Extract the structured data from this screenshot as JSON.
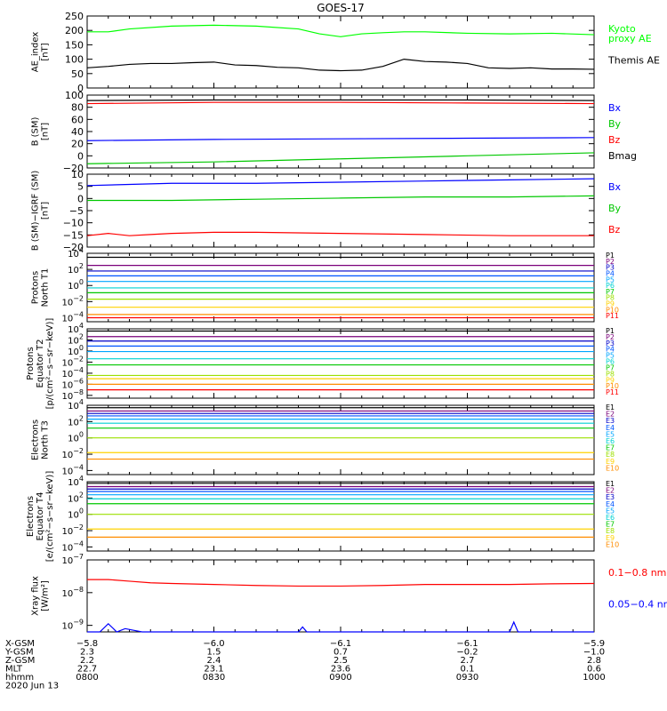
{
  "title": "GOES-17",
  "colors": {
    "black": "#000000",
    "red": "#ff0000",
    "green": "#00c800",
    "blue": "#0000ff",
    "kyoto": "#00ff00",
    "p_channels": [
      "#000000",
      "#7a007a",
      "#0000c8",
      "#0055ff",
      "#00a5ff",
      "#00d2d2",
      "#00c800",
      "#9be000",
      "#ffd200",
      "#ff8c00",
      "#ff0000"
    ],
    "e_channels": [
      "#000000",
      "#7a007a",
      "#0000c8",
      "#0055ff",
      "#00a5ff",
      "#00d2d2",
      "#00c800",
      "#9be000",
      "#ffd200",
      "#ff8c00"
    ]
  },
  "chart_data": [
    {
      "type": "line",
      "panel": "ae",
      "ylabel": "AE_index\n[nT]",
      "ylim": [
        0,
        250
      ],
      "yticks": [
        "250",
        "200",
        "150",
        "100",
        "50",
        "0"
      ],
      "series": [
        {
          "name": "Kyoto\nproxy AE",
          "color": "#00ff00",
          "x": [
            0,
            5,
            10,
            20,
            30,
            40,
            50,
            55,
            60,
            65,
            70,
            75,
            80,
            90,
            100,
            110,
            120
          ],
          "y": [
            195,
            195,
            205,
            215,
            218,
            215,
            205,
            188,
            178,
            188,
            192,
            195,
            195,
            190,
            188,
            190,
            185
          ]
        },
        {
          "name": "Themis AE",
          "color": "#000000",
          "x": [
            0,
            5,
            10,
            15,
            20,
            25,
            30,
            35,
            40,
            45,
            50,
            55,
            60,
            65,
            70,
            75,
            80,
            85,
            90,
            95,
            100,
            105,
            110,
            115,
            120
          ],
          "y": [
            70,
            75,
            82,
            85,
            85,
            88,
            90,
            80,
            78,
            72,
            70,
            62,
            60,
            62,
            75,
            100,
            92,
            90,
            85,
            70,
            68,
            70,
            66,
            66,
            65
          ]
        }
      ]
    },
    {
      "type": "line",
      "panel": "b_sm",
      "ylabel": "B (SM)\n[nT]",
      "ylim": [
        -20,
        100
      ],
      "yticks": [
        "100",
        "80",
        "60",
        "40",
        "20",
        "0",
        "−20"
      ],
      "series": [
        {
          "name": "Bx",
          "color": "#0000ff",
          "x": [
            0,
            30,
            60,
            90,
            120
          ],
          "y": [
            25,
            27,
            28,
            29,
            30
          ]
        },
        {
          "name": "By",
          "color": "#00c800",
          "x": [
            0,
            30,
            60,
            90,
            120
          ],
          "y": [
            -13,
            -10,
            -5,
            0,
            5
          ]
        },
        {
          "name": "Bz",
          "color": "#ff0000",
          "x": [
            0,
            30,
            60,
            90,
            120
          ],
          "y": [
            86,
            88,
            88,
            87,
            86
          ]
        },
        {
          "name": "Bmag",
          "color": "#000000",
          "x": [
            0,
            30,
            60,
            90,
            120
          ],
          "y": [
            91,
            92,
            92,
            92,
            91
          ]
        }
      ]
    },
    {
      "type": "line",
      "panel": "b_igrf",
      "ylabel": "B (SM)−IGRF (SM)\n[nT]",
      "ylim": [
        -22,
        10
      ],
      "yticks": [
        "10",
        "5",
        "0",
        "−5",
        "−10",
        "−15",
        "−20"
      ],
      "series": [
        {
          "name": "Bx",
          "color": "#0000ff",
          "x": [
            0,
            10,
            20,
            40,
            60,
            80,
            100,
            120
          ],
          "y": [
            5,
            5.5,
            6,
            6,
            6.5,
            7,
            7.5,
            8
          ]
        },
        {
          "name": "By",
          "color": "#00c800",
          "x": [
            0,
            20,
            40,
            60,
            80,
            100,
            120
          ],
          "y": [
            -1.5,
            -1.5,
            -1,
            -0.5,
            0,
            0,
            0.5
          ]
        },
        {
          "name": "Bz",
          "color": "#ff0000",
          "x": [
            0,
            5,
            10,
            15,
            20,
            30,
            40,
            60,
            80,
            100,
            120
          ],
          "y": [
            -17,
            -16,
            -17,
            -16.5,
            -16,
            -15.5,
            -15.5,
            -16,
            -16.5,
            -17,
            -17
          ]
        }
      ]
    },
    {
      "type": "line",
      "panel": "protons_t1",
      "log": true,
      "ylabel": "Protons\nNorth T1",
      "ylim": [
        -4.5,
        4
      ],
      "yticks": [
        {
          "e": "4",
          "v": 4
        },
        {
          "e": "2",
          "v": 2
        },
        {
          "e": "0",
          "v": 0
        },
        {
          "e": "−2",
          "v": -2
        },
        {
          "e": "−4",
          "v": -4
        }
      ],
      "labels": [
        "P1",
        "P2",
        "P3",
        "P4",
        "P5",
        "P6",
        "P7",
        "P8",
        "P9",
        "P10",
        "P11"
      ],
      "levels": [
        3.5,
        2.5,
        1.8,
        1.2,
        0.5,
        -0.3,
        -0.9,
        -1.7,
        -2.7,
        -3.6,
        -4.0
      ]
    },
    {
      "type": "line",
      "panel": "protons_t2",
      "log": true,
      "ylabel": "Protons\nEquator T2\n[p/(cm²−s−sr−keV)]",
      "ylim": [
        -8.5,
        4
      ],
      "yticks": [
        {
          "e": "4",
          "v": 4
        },
        {
          "e": "2",
          "v": 2
        },
        {
          "e": "0",
          "v": 0
        },
        {
          "e": "−2",
          "v": -2
        },
        {
          "e": "−4",
          "v": -4
        },
        {
          "e": "−6",
          "v": -6
        },
        {
          "e": "−8",
          "v": -8
        }
      ],
      "labels": [
        "P1",
        "P2",
        "P3",
        "P4",
        "P5",
        "P6",
        "P7",
        "P8",
        "P9",
        "P10",
        "P11"
      ],
      "levels": [
        3.6,
        2.6,
        1.8,
        0.9,
        -0.1,
        -1.4,
        -2.5,
        -4.4,
        -5.0,
        -6.0,
        -7.0
      ]
    },
    {
      "type": "line",
      "panel": "electrons_t3",
      "log": true,
      "ylabel": "Electrons\nNorth T3",
      "ylim": [
        -4.5,
        4
      ],
      "yticks": [
        {
          "e": "4",
          "v": 4
        },
        {
          "e": "2",
          "v": 2
        },
        {
          "e": "0",
          "v": 0
        },
        {
          "e": "−2",
          "v": -2
        },
        {
          "e": "−4",
          "v": -4
        }
      ],
      "labels": [
        "E1",
        "E2",
        "E3",
        "E4",
        "E5",
        "E6",
        "E7",
        "E8",
        "E9",
        "E10"
      ],
      "levels": [
        3.7,
        3.3,
        3.0,
        2.7,
        2.3,
        1.8,
        1.2,
        0.0,
        -1.8,
        -2.6
      ]
    },
    {
      "type": "line",
      "panel": "electrons_t4",
      "log": true,
      "ylabel": "Electrons\nEquator T4\n[e/(cm²−s−sr−keV)]",
      "ylim": [
        -4.5,
        4
      ],
      "yticks": [
        {
          "e": "4",
          "v": 4
        },
        {
          "e": "2",
          "v": 2
        },
        {
          "e": "0",
          "v": 0
        },
        {
          "e": "−2",
          "v": -2
        },
        {
          "e": "−4",
          "v": -4
        }
      ],
      "labels": [
        "E1",
        "E2",
        "E3",
        "E4",
        "E5",
        "E6",
        "E7",
        "E8",
        "E9",
        "E10"
      ],
      "levels": [
        3.8,
        3.4,
        3.1,
        2.8,
        2.4,
        1.9,
        1.3,
        0.0,
        -1.8,
        -2.8
      ]
    },
    {
      "type": "line",
      "panel": "xray",
      "log": true,
      "ylabel": "Xray flux\n[W/m²]",
      "ylim": [
        -9.2,
        -7
      ],
      "yticks": [
        {
          "e": "−7",
          "v": -7
        },
        {
          "e": "−8",
          "v": -8
        },
        {
          "e": "−9",
          "v": -9
        }
      ],
      "series": [
        {
          "name": "0.1−0.8 nm",
          "color": "#ff0000",
          "x": [
            0,
            5,
            10,
            15,
            20,
            30,
            40,
            50,
            60,
            70,
            80,
            90,
            100,
            110,
            120
          ],
          "y": [
            -7.6,
            -7.6,
            -7.65,
            -7.7,
            -7.72,
            -7.75,
            -7.78,
            -7.8,
            -7.8,
            -7.78,
            -7.75,
            -7.75,
            -7.75,
            -7.73,
            -7.72
          ]
        },
        {
          "name": "0.05−0.4 nm",
          "color": "#0000ff",
          "x": [
            0,
            3,
            5,
            7,
            9,
            11,
            13,
            15,
            50,
            51,
            52,
            100,
            101,
            102,
            120
          ],
          "y": [
            -9.2,
            -9.2,
            -8.95,
            -9.2,
            -9.1,
            -9.15,
            -9.2,
            -9.2,
            -9.2,
            -9.05,
            -9.2,
            -9.2,
            -8.9,
            -9.2,
            -9.2
          ]
        }
      ]
    }
  ],
  "footer": {
    "row_labels": [
      "X-GSM",
      "Y-GSM",
      "Z-GSM",
      "MLT",
      "hhmm"
    ],
    "date": "2020 Jun 13",
    "columns": [
      [
        "−5.8",
        "2.3",
        "2.2",
        "22.7",
        "0800"
      ],
      [
        "−6.0",
        "1.5",
        "2.4",
        "23.1",
        "0830"
      ],
      [
        "−6.1",
        "0.7",
        "2.5",
        "23.6",
        "0900"
      ],
      [
        "−6.1",
        "−0.2",
        "2.7",
        "0.1",
        "0930"
      ],
      [
        "−5.9",
        "−1.0",
        "2.8",
        "0.6",
        "1000"
      ]
    ]
  }
}
